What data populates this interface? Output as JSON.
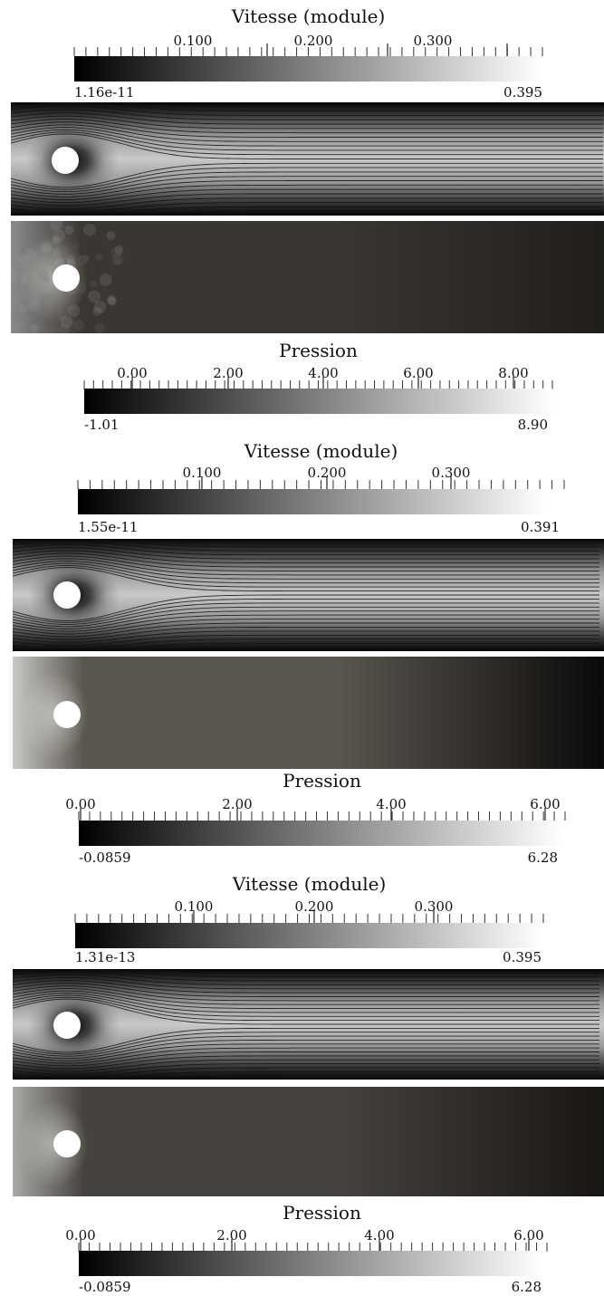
{
  "colorbars": [
    {
      "id": "vel1",
      "title": "Vitesse (module)",
      "ticks": [
        "0.100",
        "0.200",
        "0.300"
      ],
      "min": "1.16e-11",
      "max": "0.395"
    },
    {
      "id": "pre1",
      "title": "Pression",
      "ticks": [
        "0.00",
        "2.00",
        "4.00",
        "6.00",
        "8.00"
      ],
      "min": "-1.01",
      "max": "8.90"
    },
    {
      "id": "vel2",
      "title": "Vitesse (module)",
      "ticks": [
        "0.100",
        "0.200",
        "0.300"
      ],
      "min": "1.55e-11",
      "max": "0.391"
    },
    {
      "id": "pre2",
      "title": "Pression",
      "ticks": [
        "0.00",
        "2.00",
        "4.00",
        "6.00"
      ],
      "min": "-0.0859",
      "max": "6.28"
    },
    {
      "id": "vel3",
      "title": "Vitesse (module)",
      "ticks": [
        "0.100",
        "0.200",
        "0.300"
      ],
      "min": "1.31e-13",
      "max": "0.395"
    },
    {
      "id": "pre3",
      "title": "Pression",
      "ticks": [
        "0.00",
        "2.00",
        "4.00",
        "6.00"
      ],
      "min": "-0.0859",
      "max": "6.28"
    }
  ],
  "colors": {
    "dark": "#000000",
    "light": "#ffffff",
    "field_mid": "#6a6a6a",
    "field_dark": "#2a2622"
  }
}
